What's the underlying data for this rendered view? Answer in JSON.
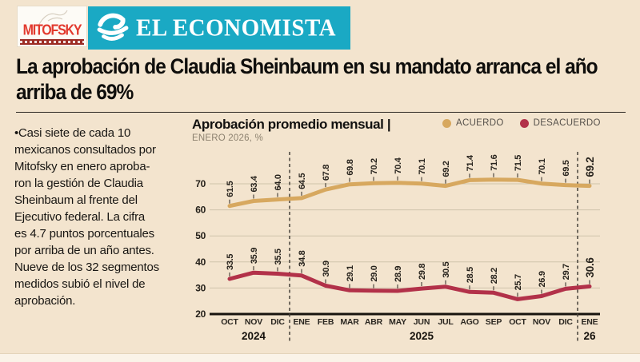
{
  "page": {
    "background": "#f3e4ce"
  },
  "header": {
    "mitofsky": {
      "name": "MITOFSKY",
      "brand_red": "#e23a2e"
    },
    "economista": {
      "name": "EL ECONOMISTA",
      "banner_teal": "#1aa9c4",
      "icon": "globe-e-icon"
    }
  },
  "headline": "La aprobación de Claudia Sheinbaum en su mandato arranca el año\narriba de 69%",
  "summary": "•Casi siete de cada 10\nmexicanos consultados por\nMitofsky en enero aproba-\nron la gestión de Claudia\nSheinbaum al frente del\nEjecutivo federal. La cifra\nes 4.7 puntos porcentuales\npor arriba de un año antes.\nNueve de los 32 segmentos\nmedidos subió el nivel de\naprobación.",
  "chart_data": {
    "type": "line",
    "title": "Aprobación promedio mensual |",
    "subtitle": "ENERO 2026, %",
    "categories": [
      "OCT",
      "NOV",
      "DIC",
      "ENE",
      "FEB",
      "MAR",
      "ABR",
      "MAY",
      "JUN",
      "JUL",
      "AGO",
      "SEP",
      "OCT",
      "NOV",
      "DIC",
      "ENE"
    ],
    "year_groups": [
      {
        "label": "2024",
        "center_index": 1
      },
      {
        "label": "2025",
        "center_index": 8
      },
      {
        "label": "26",
        "center_index": 15
      }
    ],
    "series": [
      {
        "name": "ACUERDO",
        "color": "#d7a85f",
        "values": [
          61.5,
          63.4,
          64.0,
          64.5,
          67.8,
          69.8,
          70.2,
          70.4,
          70.1,
          69.2,
          71.4,
          71.6,
          71.5,
          70.1,
          69.5,
          69.2
        ]
      },
      {
        "name": "DESACUERDO",
        "color": "#b23149",
        "values": [
          33.5,
          35.9,
          35.5,
          34.8,
          30.9,
          29.1,
          29.0,
          28.9,
          29.8,
          30.5,
          28.5,
          28.2,
          25.7,
          26.9,
          29.7,
          30.6
        ]
      }
    ],
    "ylim": [
      20,
      75
    ],
    "yticks": [
      20,
      30,
      40,
      50,
      60,
      70
    ],
    "grid": true,
    "legend_position": "top-right",
    "dashed_separators_after_index": [
      2,
      14
    ]
  }
}
